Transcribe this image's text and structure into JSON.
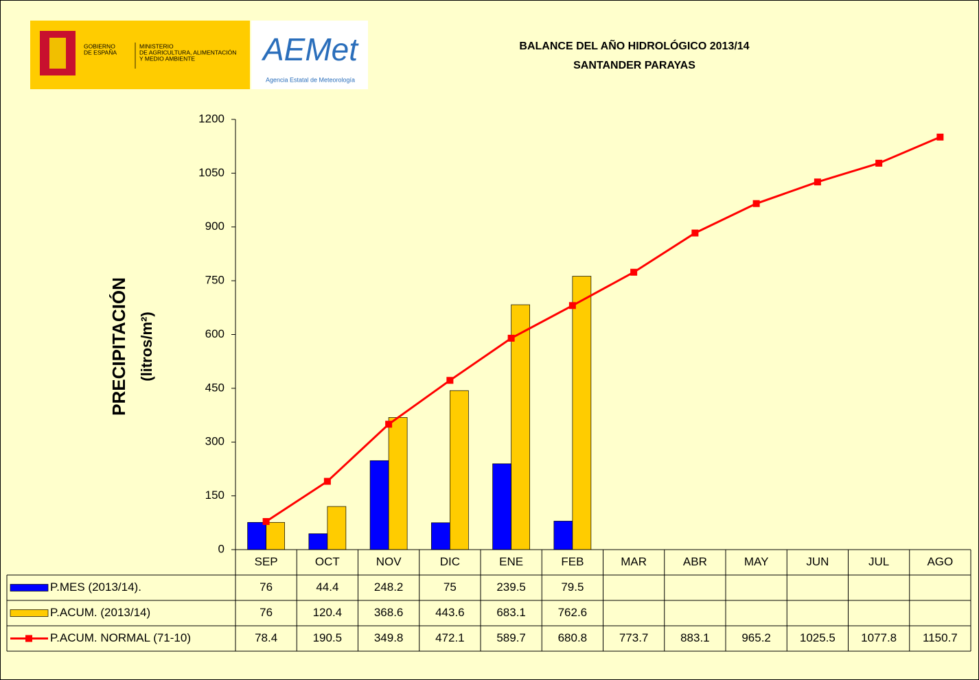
{
  "chart_data": {
    "type": "bar",
    "title": "BALANCE DEL AÑO HIDROLÓGICO 2013/14",
    "subtitle": "SANTANDER PARAYAS",
    "logo_texts": [
      "GOBIERNO",
      "DE ESPAÑA",
      "MINISTERIO",
      "DE AGRICULTURA, ALIMENTACIÓN",
      "Y MEDIO AMBIENTE",
      "AEMet",
      "Agencia Estatal de Meteorología"
    ],
    "ylabel": [
      "PRECIPITACIÓN",
      "(litros/m²)"
    ],
    "categories": [
      "SEP",
      "OCT",
      "NOV",
      "DIC",
      "ENE",
      "FEB",
      "MAR",
      "ABR",
      "MAY",
      "JUN",
      "JUL",
      "AGO"
    ],
    "series": [
      {
        "name": "P.MES (2013/14).",
        "type": "bar",
        "color": "#0000ff",
        "values": [
          76,
          44.4,
          248.2,
          75,
          239.5,
          79.5,
          null,
          null,
          null,
          null,
          null,
          null
        ]
      },
      {
        "name": "P.ACUM. (2013/14)",
        "type": "bar",
        "color": "#ffcc00",
        "values": [
          76,
          120.4,
          368.6,
          443.6,
          683.1,
          762.6,
          null,
          null,
          null,
          null,
          null,
          null
        ]
      },
      {
        "name": "P.ACUM. NORMAL (71-10)",
        "type": "line",
        "color": "#ff0000",
        "values": [
          78.4,
          190.5,
          349.8,
          472.1,
          589.7,
          680.8,
          773.7,
          883.1,
          965.2,
          1025.5,
          1077.8,
          1150.7
        ]
      }
    ],
    "ylim": [
      0,
      1200
    ],
    "yticks": [
      0,
      150,
      300,
      450,
      600,
      750,
      900,
      1050,
      1200
    ],
    "grid": false
  }
}
